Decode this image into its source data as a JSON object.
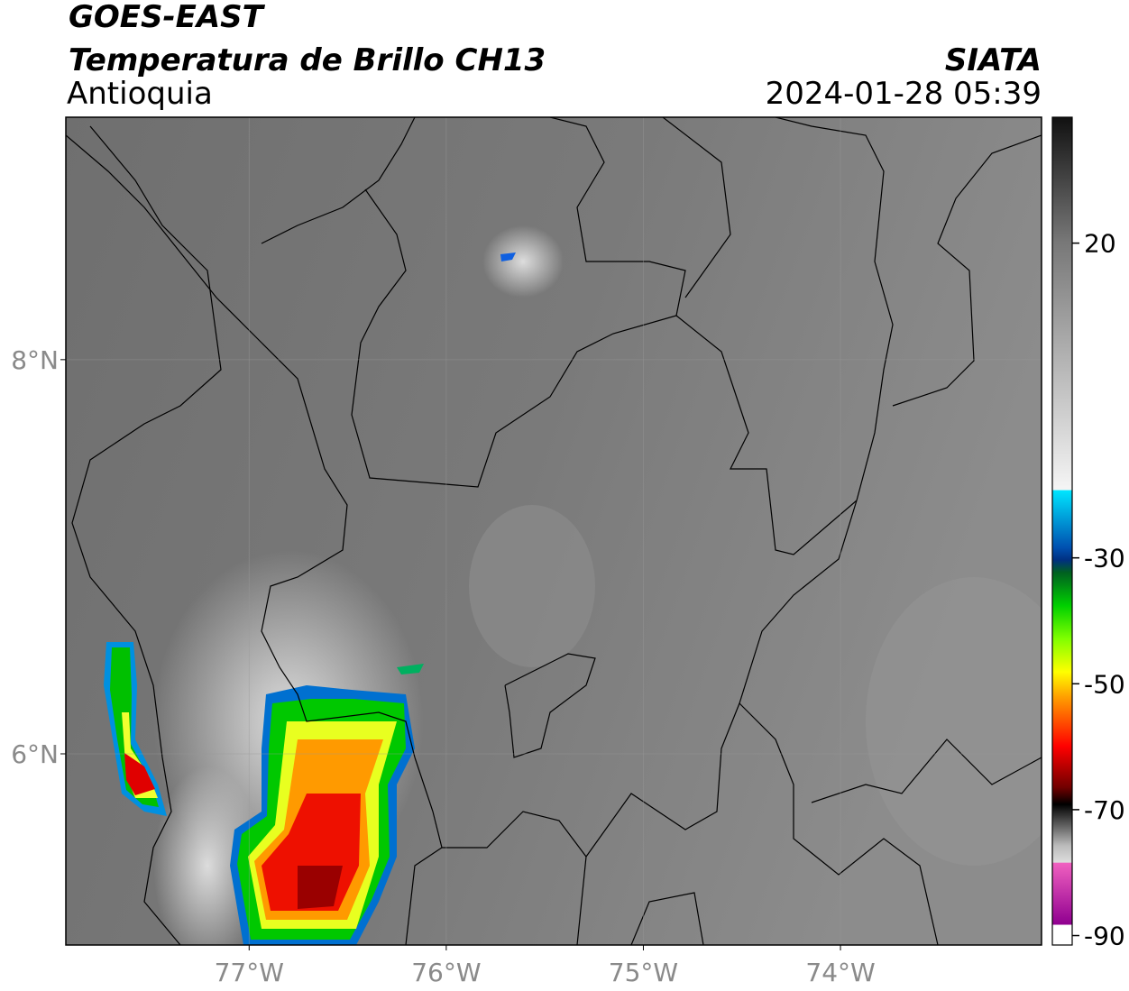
{
  "header": {
    "satellite": "GOES-EAST",
    "product": "Temperatura de Brillo CH13",
    "region": "Antioquia",
    "source": "SIATA",
    "datetime": "2024-01-28 05:39"
  },
  "map": {
    "lon_range": [
      -77.93,
      -72.98
    ],
    "lat_range": [
      5.03,
      9.23
    ],
    "lat_ticks": [
      {
        "value": 8,
        "label": "8°N"
      },
      {
        "value": 6,
        "label": "6°N"
      }
    ],
    "lon_ticks": [
      {
        "value": -77,
        "label": "77°W"
      },
      {
        "value": -76,
        "label": "76°W"
      },
      {
        "value": -75,
        "label": "75°W"
      },
      {
        "value": -74,
        "label": "74°W"
      }
    ],
    "grid": true
  },
  "colorbar": {
    "range": [
      -91.5,
      40
    ],
    "ticks": [
      20,
      -30,
      -50,
      -70,
      -90
    ]
  }
}
